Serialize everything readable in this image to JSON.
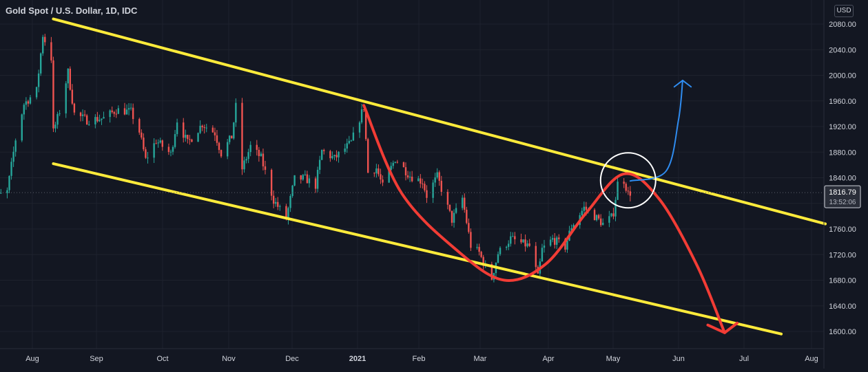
{
  "header": {
    "title": "Gold Spot / U.S. Dollar, 1D, IDC",
    "currency_badge": "USD"
  },
  "colors": {
    "background": "#131722",
    "candle_up": "#26a69a",
    "candle_down": "#ef5350",
    "channel": "#ffeb3b",
    "red_path": "#f23c35",
    "blue_path": "#2f8cf0",
    "circle": "#ffffff",
    "grid": "#1e222d",
    "axis_text": "#d1d4dc"
  },
  "chart_data": {
    "type": "candlestick",
    "title": "Gold Spot / U.S. Dollar, 1D, IDC",
    "y_axis": {
      "ticks": [
        "2080.00",
        "2040.00",
        "2000.00",
        "1960.00",
        "1920.00",
        "1880.00",
        "1840.00",
        "1800.00",
        "1760.00",
        "1720.00",
        "1680.00",
        "1640.00",
        "1600.00"
      ],
      "range": [
        1576,
        2112
      ]
    },
    "x_axis": {
      "ticks": [
        "Aug",
        "Sep",
        "Oct",
        "Nov",
        "Dec",
        "2021",
        "Feb",
        "Mar",
        "Apr",
        "May",
        "Jun",
        "Jul",
        "Aug"
      ]
    },
    "last_price": {
      "price": "1816.79",
      "countdown": "13:52:06"
    },
    "grid": true,
    "close_path": [
      [
        "2020-07-10",
        1798
      ],
      [
        "2020-07-15",
        1810
      ],
      [
        "2020-07-20",
        1818
      ],
      [
        "2020-07-24",
        1900
      ],
      [
        "2020-07-28",
        1955
      ],
      [
        "2020-08-03",
        1976
      ],
      [
        "2020-08-06",
        2063
      ],
      [
        "2020-08-10",
        2027
      ],
      [
        "2020-08-11",
        1912
      ],
      [
        "2020-08-14",
        1944
      ],
      [
        "2020-08-18",
        2005
      ],
      [
        "2020-08-21",
        1940
      ],
      [
        "2020-08-27",
        1930
      ],
      [
        "2020-09-04",
        1933
      ],
      [
        "2020-09-10",
        1946
      ],
      [
        "2020-09-17",
        1943
      ],
      [
        "2020-09-21",
        1912
      ],
      [
        "2020-09-24",
        1868
      ],
      [
        "2020-09-29",
        1898
      ],
      [
        "2020-10-06",
        1877
      ],
      [
        "2020-10-09",
        1930
      ],
      [
        "2020-10-14",
        1894
      ],
      [
        "2020-10-21",
        1924
      ],
      [
        "2020-10-27",
        1910
      ],
      [
        "2020-10-30",
        1878
      ],
      [
        "2020-11-04",
        1904
      ],
      [
        "2020-11-06",
        1951
      ],
      [
        "2020-11-09",
        1854
      ],
      [
        "2020-11-13",
        1889
      ],
      [
        "2020-11-18",
        1871
      ],
      [
        "2020-11-24",
        1805
      ],
      [
        "2020-11-30",
        1776
      ],
      [
        "2020-12-04",
        1838
      ],
      [
        "2020-12-09",
        1839
      ],
      [
        "2020-12-14",
        1828
      ],
      [
        "2020-12-17",
        1882
      ],
      [
        "2020-12-23",
        1870
      ],
      [
        "2020-12-31",
        1895
      ],
      [
        "2021-01-06",
        1951
      ],
      [
        "2021-01-08",
        1848
      ],
      [
        "2021-01-12",
        1855
      ],
      [
        "2021-01-15",
        1826
      ],
      [
        "2021-01-21",
        1870
      ],
      [
        "2021-01-28",
        1843
      ],
      [
        "2021-02-03",
        1834
      ],
      [
        "2021-02-05",
        1812
      ],
      [
        "2021-02-10",
        1842
      ],
      [
        "2021-02-17",
        1774
      ],
      [
        "2021-02-22",
        1808
      ],
      [
        "2021-02-26",
        1734
      ],
      [
        "2021-03-02",
        1723
      ],
      [
        "2021-03-05",
        1700
      ],
      [
        "2021-03-08",
        1683
      ],
      [
        "2021-03-11",
        1722
      ],
      [
        "2021-03-17",
        1745
      ],
      [
        "2021-03-22",
        1738
      ],
      [
        "2021-03-26",
        1733
      ],
      [
        "2021-03-30",
        1684
      ],
      [
        "2021-04-01",
        1728
      ],
      [
        "2021-04-06",
        1744
      ],
      [
        "2021-04-12",
        1732
      ],
      [
        "2021-04-15",
        1764
      ],
      [
        "2021-04-21",
        1793
      ],
      [
        "2021-04-26",
        1780
      ],
      [
        "2021-04-30",
        1768
      ],
      [
        "2021-05-04",
        1778
      ],
      [
        "2021-05-05",
        1786
      ],
      [
        "2021-05-07",
        1831
      ],
      [
        "2021-05-10",
        1836
      ],
      [
        "2021-05-12",
        1815
      ],
      [
        "2021-05-13",
        1816.79
      ]
    ],
    "annotations": {
      "channel_upper": [
        [
          "2020-08-11",
          2088
        ],
        [
          "2021-08-14",
          1768
        ]
      ],
      "channel_lower": [
        [
          "2020-08-11",
          1862
        ],
        [
          "2021-07-24",
          1596
        ]
      ],
      "red_arc": [
        [
          "2021-01-06",
          1953
        ],
        [
          "2021-01-24",
          1816
        ],
        [
          "2021-02-20",
          1725
        ],
        [
          "2021-03-14",
          1680
        ],
        [
          "2021-04-03",
          1706
        ],
        [
          "2021-04-22",
          1785
        ],
        [
          "2021-05-10",
          1846
        ],
        [
          "2021-05-27",
          1806
        ],
        [
          "2021-06-14",
          1702
        ],
        [
          "2021-06-27",
          1598
        ]
      ],
      "red_arrowhead": [
        [
          "2021-06-19",
          1610
        ],
        [
          "2021-06-27",
          1598
        ],
        [
          "2021-07-03",
          1613
        ]
      ],
      "blue_path": [
        [
          "2021-05-13",
          1835
        ],
        [
          "2021-05-30",
          1850
        ],
        [
          "2021-06-05",
          1930
        ],
        [
          "2021-06-07",
          1992
        ]
      ],
      "blue_arrowhead": [
        [
          "2021-06-03",
          1982
        ],
        [
          "2021-06-07",
          1992
        ],
        [
          "2021-06-11",
          1982
        ]
      ],
      "circle": {
        "center": [
          "2021-05-12",
          1836
        ],
        "radius_px": 40
      }
    }
  }
}
